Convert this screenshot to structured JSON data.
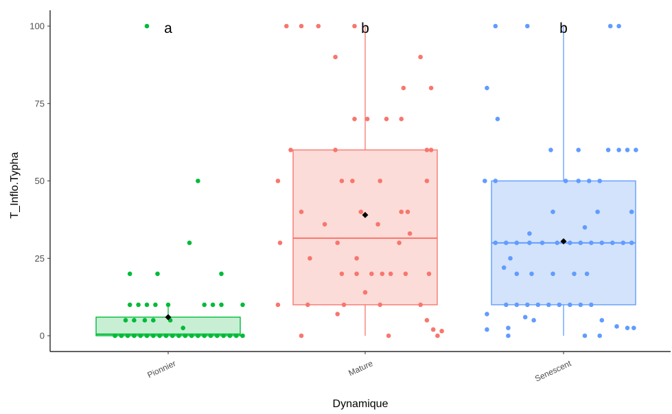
{
  "chart_data": {
    "type": "boxplot",
    "xlabel": "Dynamique",
    "ylabel": "T_Inflo.Typha",
    "ylim": [
      -5,
      104
    ],
    "yticks": [
      0,
      25,
      50,
      75,
      100
    ],
    "grid": false,
    "legend": "none",
    "categories": [
      "Pionnier",
      "Mature",
      "Senescent"
    ],
    "groups": [
      {
        "category": "Pionnier",
        "letter": "a",
        "color": "#00BA38",
        "fill": "#c8efd4",
        "box": {
          "whisker_low": 0,
          "q1": 0,
          "median": 0.5,
          "q3": 6,
          "whisker_high": 10
        },
        "mean": 6,
        "points": [
          [
            -0.2,
            100
          ],
          [
            0.28,
            50
          ],
          [
            0.2,
            30
          ],
          [
            -0.36,
            20
          ],
          [
            -0.1,
            20
          ],
          [
            0.5,
            20
          ],
          [
            -0.36,
            10
          ],
          [
            -0.28,
            10
          ],
          [
            -0.2,
            10
          ],
          [
            -0.12,
            10
          ],
          [
            0.0,
            10
          ],
          [
            0.34,
            10
          ],
          [
            0.42,
            10
          ],
          [
            0.5,
            10
          ],
          [
            0.7,
            10
          ],
          [
            -0.4,
            5
          ],
          [
            -0.32,
            5
          ],
          [
            -0.22,
            5
          ],
          [
            -0.14,
            5
          ],
          [
            0.02,
            5
          ],
          [
            0.14,
            2.5
          ],
          [
            -0.5,
            0
          ],
          [
            -0.44,
            0
          ],
          [
            -0.38,
            0
          ],
          [
            -0.32,
            0
          ],
          [
            -0.26,
            0
          ],
          [
            -0.2,
            0
          ],
          [
            -0.14,
            0
          ],
          [
            -0.08,
            0
          ],
          [
            -0.02,
            0
          ],
          [
            0.04,
            0
          ],
          [
            0.1,
            0
          ],
          [
            0.16,
            0
          ],
          [
            0.22,
            0
          ],
          [
            0.28,
            0
          ],
          [
            0.34,
            0
          ],
          [
            0.4,
            0
          ],
          [
            0.46,
            0
          ],
          [
            0.52,
            0
          ],
          [
            0.58,
            0
          ],
          [
            0.64,
            0
          ],
          [
            0.7,
            0
          ]
        ]
      },
      {
        "category": "Mature",
        "letter": "b",
        "color": "#F8766D",
        "fill": "#fcdcd9",
        "box": {
          "whisker_low": 0,
          "q1": 10,
          "median": 31.5,
          "q3": 60,
          "whisker_high": 100
        },
        "mean": 39,
        "points": [
          [
            -0.74,
            100
          ],
          [
            -0.6,
            100
          ],
          [
            -0.44,
            100
          ],
          [
            -0.1,
            100
          ],
          [
            -0.28,
            90
          ],
          [
            0.52,
            90
          ],
          [
            0.36,
            80
          ],
          [
            0.62,
            80
          ],
          [
            -0.1,
            70
          ],
          [
            0.02,
            70
          ],
          [
            0.2,
            70
          ],
          [
            0.34,
            70
          ],
          [
            -0.7,
            60
          ],
          [
            -0.28,
            60
          ],
          [
            0.58,
            60
          ],
          [
            0.62,
            60
          ],
          [
            -0.82,
            50
          ],
          [
            -0.22,
            50
          ],
          [
            -0.12,
            50
          ],
          [
            0.14,
            50
          ],
          [
            0.58,
            50
          ],
          [
            -0.6,
            40
          ],
          [
            -0.04,
            40
          ],
          [
            0.34,
            40
          ],
          [
            0.4,
            40
          ],
          [
            -0.38,
            36
          ],
          [
            0.12,
            36
          ],
          [
            0.42,
            33
          ],
          [
            -0.8,
            30
          ],
          [
            -0.26,
            30
          ],
          [
            0.32,
            30
          ],
          [
            -0.52,
            25
          ],
          [
            -0.08,
            25
          ],
          [
            -0.22,
            20
          ],
          [
            -0.08,
            20
          ],
          [
            0.06,
            20
          ],
          [
            0.16,
            20
          ],
          [
            0.24,
            20
          ],
          [
            0.38,
            20
          ],
          [
            0.6,
            20
          ],
          [
            0.0,
            14
          ],
          [
            -0.82,
            10
          ],
          [
            -0.54,
            10
          ],
          [
            -0.2,
            10
          ],
          [
            0.14,
            10
          ],
          [
            0.52,
            10
          ],
          [
            -0.26,
            7
          ],
          [
            0.58,
            5
          ],
          [
            0.64,
            2
          ],
          [
            0.72,
            1.5
          ],
          [
            -0.6,
            0
          ],
          [
            0.22,
            0
          ],
          [
            0.68,
            0
          ]
        ]
      },
      {
        "category": "Senescent",
        "letter": "b",
        "color": "#619CFF",
        "fill": "#d3e3fb",
        "box": {
          "whisker_low": 0,
          "q1": 10,
          "median": 30,
          "q3": 50,
          "whisker_high": 100
        },
        "mean": 30.5,
        "points": [
          [
            -0.64,
            100
          ],
          [
            -0.34,
            100
          ],
          [
            0.44,
            100
          ],
          [
            0.52,
            100
          ],
          [
            -0.72,
            80
          ],
          [
            -0.62,
            70
          ],
          [
            -0.12,
            60
          ],
          [
            0.14,
            60
          ],
          [
            0.42,
            60
          ],
          [
            0.52,
            60
          ],
          [
            0.6,
            60
          ],
          [
            0.68,
            60
          ],
          [
            -0.74,
            50
          ],
          [
            -0.64,
            50
          ],
          [
            0.02,
            50
          ],
          [
            0.14,
            50
          ],
          [
            0.24,
            50
          ],
          [
            0.34,
            50
          ],
          [
            -0.1,
            40
          ],
          [
            0.32,
            40
          ],
          [
            0.64,
            40
          ],
          [
            -0.32,
            33
          ],
          [
            0.2,
            35
          ],
          [
            -0.64,
            30
          ],
          [
            -0.54,
            30
          ],
          [
            -0.44,
            30
          ],
          [
            -0.32,
            30
          ],
          [
            -0.2,
            30
          ],
          [
            -0.06,
            30
          ],
          [
            0.06,
            30
          ],
          [
            0.16,
            30
          ],
          [
            0.26,
            30
          ],
          [
            0.36,
            30
          ],
          [
            0.46,
            30
          ],
          [
            0.56,
            30
          ],
          [
            0.64,
            30
          ],
          [
            -0.5,
            25
          ],
          [
            -0.56,
            22
          ],
          [
            -0.44,
            20
          ],
          [
            -0.3,
            20
          ],
          [
            -0.1,
            20
          ],
          [
            0.1,
            20
          ],
          [
            0.22,
            20
          ],
          [
            -0.54,
            10
          ],
          [
            -0.44,
            10
          ],
          [
            -0.34,
            10
          ],
          [
            -0.24,
            10
          ],
          [
            -0.14,
            10
          ],
          [
            -0.04,
            10
          ],
          [
            0.06,
            10
          ],
          [
            0.16,
            10
          ],
          [
            0.26,
            10
          ],
          [
            -0.72,
            7
          ],
          [
            -0.36,
            6
          ],
          [
            -0.28,
            5
          ],
          [
            0.36,
            5
          ],
          [
            0.5,
            3
          ],
          [
            0.6,
            2.5
          ],
          [
            0.66,
            2.5
          ],
          [
            -0.72,
            2
          ],
          [
            -0.52,
            2.5
          ],
          [
            -0.52,
            0
          ],
          [
            0.2,
            0
          ],
          [
            0.34,
            0
          ]
        ]
      }
    ]
  }
}
